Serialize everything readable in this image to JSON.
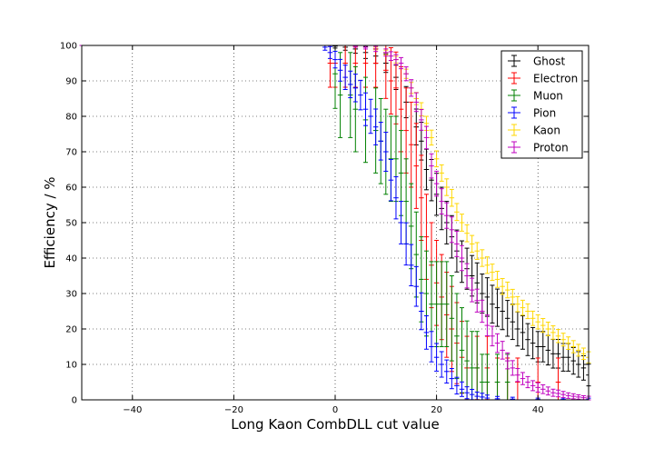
{
  "chart_data": {
    "type": "scatter",
    "title": "",
    "xlabel": "Long Kaon CombDLL cut value",
    "ylabel": "Efficiency / %",
    "xlim": [
      -50,
      50
    ],
    "ylim": [
      0,
      100
    ],
    "x_ticks": [
      -40,
      -20,
      0,
      20,
      40
    ],
    "y_ticks": [
      0,
      10,
      20,
      30,
      40,
      50,
      60,
      70,
      80,
      90,
      100
    ],
    "grid": true,
    "legend_position": "top-right",
    "series": [
      {
        "name": "Ghost",
        "color": "#000000",
        "xerr": 0.5,
        "yerr_scale": 1.0,
        "points": [
          [
            -50,
            100
          ],
          [
            -10,
            100
          ],
          [
            -2,
            100
          ],
          [
            0,
            99.8
          ],
          [
            2,
            99.5
          ],
          [
            4,
            99
          ],
          [
            6,
            98
          ],
          [
            8,
            97
          ],
          [
            10,
            95
          ],
          [
            12,
            91
          ],
          [
            14,
            84
          ],
          [
            16,
            77
          ],
          [
            17,
            73
          ],
          [
            18,
            65
          ],
          [
            19,
            62
          ],
          [
            20,
            58
          ],
          [
            21,
            54
          ],
          [
            22,
            50
          ],
          [
            23,
            46
          ],
          [
            24,
            42
          ],
          [
            25,
            39
          ],
          [
            26,
            37
          ],
          [
            27,
            35
          ],
          [
            28,
            33
          ],
          [
            29,
            30
          ],
          [
            30,
            29
          ],
          [
            31,
            27
          ],
          [
            32,
            26
          ],
          [
            33,
            25
          ],
          [
            34,
            23
          ],
          [
            35,
            22
          ],
          [
            36,
            20
          ],
          [
            37,
            19
          ],
          [
            38,
            17
          ],
          [
            39,
            16
          ],
          [
            40,
            15
          ],
          [
            41,
            15
          ],
          [
            42,
            14
          ],
          [
            43,
            13
          ],
          [
            44,
            13
          ],
          [
            45,
            12
          ],
          [
            46,
            12
          ],
          [
            47,
            11
          ],
          [
            48,
            10
          ],
          [
            49,
            9
          ],
          [
            50,
            7
          ]
        ]
      },
      {
        "name": "Electron",
        "color": "#ff0000",
        "xerr": 0.5,
        "yerr_scale": 2.6,
        "points": [
          [
            -50,
            100
          ],
          [
            -10,
            100
          ],
          [
            -2,
            100
          ],
          [
            -1,
            95
          ],
          [
            0,
            95
          ],
          [
            2,
            95
          ],
          [
            4,
            95
          ],
          [
            6,
            95
          ],
          [
            8,
            95
          ],
          [
            10,
            93
          ],
          [
            11,
            90
          ],
          [
            12,
            88
          ],
          [
            13,
            82
          ],
          [
            14,
            76
          ],
          [
            15,
            72
          ],
          [
            16,
            66
          ],
          [
            17,
            57
          ],
          [
            18,
            46
          ],
          [
            19,
            38
          ],
          [
            20,
            33
          ],
          [
            21,
            29
          ],
          [
            22,
            24
          ],
          [
            23,
            20
          ],
          [
            24,
            16
          ],
          [
            25,
            12
          ],
          [
            26,
            9
          ],
          [
            28,
            9
          ],
          [
            30,
            9
          ],
          [
            32,
            5
          ],
          [
            34,
            5
          ],
          [
            36,
            5
          ],
          [
            40,
            5
          ],
          [
            44,
            5
          ]
        ]
      },
      {
        "name": "Muon",
        "color": "#008000",
        "xerr": 0.5,
        "yerr_scale": 3.0,
        "points": [
          [
            -50,
            100
          ],
          [
            -10,
            100
          ],
          [
            -2,
            100
          ],
          [
            0,
            92
          ],
          [
            1,
            86
          ],
          [
            3,
            86
          ],
          [
            4,
            82
          ],
          [
            6,
            79
          ],
          [
            8,
            76
          ],
          [
            9,
            73
          ],
          [
            10,
            70
          ],
          [
            11,
            68
          ],
          [
            12,
            68
          ],
          [
            13,
            64
          ],
          [
            14,
            56
          ],
          [
            15,
            49
          ],
          [
            16,
            41
          ],
          [
            17,
            34
          ],
          [
            18,
            30
          ],
          [
            19,
            27
          ],
          [
            20,
            27
          ],
          [
            21,
            27
          ],
          [
            22,
            27
          ],
          [
            23,
            23
          ],
          [
            24,
            18
          ],
          [
            25,
            14
          ],
          [
            26,
            11
          ],
          [
            27,
            9
          ],
          [
            28,
            9
          ],
          [
            29,
            5
          ],
          [
            30,
            5
          ],
          [
            32,
            5
          ],
          [
            34,
            5
          ]
        ]
      },
      {
        "name": "Pion",
        "color": "#0000ff",
        "xerr": 0.5,
        "yerr_scale": 1.0,
        "points": [
          [
            -50,
            100
          ],
          [
            -5,
            100
          ],
          [
            -2,
            99.5
          ],
          [
            -1,
            98
          ],
          [
            0,
            96
          ],
          [
            1,
            93
          ],
          [
            2,
            91
          ],
          [
            3,
            89
          ],
          [
            4,
            88
          ],
          [
            5,
            86
          ],
          [
            6,
            82
          ],
          [
            7,
            80
          ],
          [
            8,
            77
          ],
          [
            9,
            73
          ],
          [
            10,
            70
          ],
          [
            11,
            62
          ],
          [
            12,
            57
          ],
          [
            13,
            50
          ],
          [
            14,
            44
          ],
          [
            15,
            38
          ],
          [
            16,
            32
          ],
          [
            17,
            25
          ],
          [
            18,
            19
          ],
          [
            19,
            15
          ],
          [
            20,
            12
          ],
          [
            21,
            10
          ],
          [
            22,
            8
          ],
          [
            23,
            6
          ],
          [
            24,
            4
          ],
          [
            25,
            3
          ],
          [
            26,
            2
          ],
          [
            27,
            1.5
          ],
          [
            28,
            1
          ],
          [
            29,
            0.8
          ],
          [
            30,
            0.5
          ],
          [
            32,
            0.3
          ],
          [
            35,
            0.2
          ],
          [
            40,
            0.1
          ],
          [
            45,
            0.1
          ],
          [
            50,
            0.1
          ]
        ]
      },
      {
        "name": "Kaon",
        "color": "#ffd700",
        "xerr": 0.5,
        "yerr_scale": 0.4,
        "points": [
          [
            -50,
            100
          ],
          [
            0,
            100
          ],
          [
            4,
            99.8
          ],
          [
            8,
            99.2
          ],
          [
            10,
            98
          ],
          [
            12,
            96
          ],
          [
            14,
            92
          ],
          [
            15,
            88
          ],
          [
            16,
            85
          ],
          [
            17,
            82
          ],
          [
            18,
            78
          ],
          [
            19,
            74
          ],
          [
            20,
            68
          ],
          [
            21,
            64
          ],
          [
            22,
            60
          ],
          [
            23,
            57
          ],
          [
            24,
            53
          ],
          [
            25,
            50
          ],
          [
            26,
            47
          ],
          [
            27,
            44
          ],
          [
            28,
            42
          ],
          [
            29,
            40
          ],
          [
            30,
            38
          ],
          [
            31,
            36
          ],
          [
            32,
            34
          ],
          [
            33,
            32
          ],
          [
            34,
            31
          ],
          [
            35,
            29
          ],
          [
            36,
            27
          ],
          [
            37,
            26
          ],
          [
            38,
            25
          ],
          [
            39,
            23
          ],
          [
            40,
            22
          ],
          [
            41,
            21
          ],
          [
            42,
            20
          ],
          [
            43,
            19
          ],
          [
            44,
            18
          ],
          [
            45,
            17
          ],
          [
            46,
            16
          ],
          [
            47,
            15
          ],
          [
            48,
            14
          ],
          [
            49,
            13
          ],
          [
            50,
            12
          ]
        ]
      },
      {
        "name": "Proton",
        "color": "#bf00bf",
        "xerr": 0.5,
        "yerr_scale": 0.6,
        "points": [
          [
            -50,
            100
          ],
          [
            0,
            100
          ],
          [
            4,
            99.8
          ],
          [
            6,
            99.5
          ],
          [
            8,
            99
          ],
          [
            10,
            98
          ],
          [
            11,
            97
          ],
          [
            12,
            96
          ],
          [
            13,
            95
          ],
          [
            14,
            92
          ],
          [
            15,
            88
          ],
          [
            16,
            84
          ],
          [
            17,
            79
          ],
          [
            18,
            74
          ],
          [
            19,
            66
          ],
          [
            20,
            61
          ],
          [
            21,
            56
          ],
          [
            22,
            52
          ],
          [
            23,
            48
          ],
          [
            24,
            44
          ],
          [
            25,
            40
          ],
          [
            26,
            35
          ],
          [
            27,
            31
          ],
          [
            28,
            28
          ],
          [
            29,
            25
          ],
          [
            30,
            21
          ],
          [
            31,
            18
          ],
          [
            32,
            16
          ],
          [
            33,
            14
          ],
          [
            34,
            11
          ],
          [
            35,
            9
          ],
          [
            36,
            7
          ],
          [
            37,
            6
          ],
          [
            38,
            5
          ],
          [
            39,
            4
          ],
          [
            40,
            3.5
          ],
          [
            41,
            3
          ],
          [
            42,
            2.5
          ],
          [
            43,
            2
          ],
          [
            44,
            1.8
          ],
          [
            45,
            1.5
          ],
          [
            46,
            1.2
          ],
          [
            47,
            1
          ],
          [
            48,
            0.8
          ],
          [
            49,
            0.6
          ],
          [
            50,
            0.5
          ]
        ]
      }
    ]
  }
}
